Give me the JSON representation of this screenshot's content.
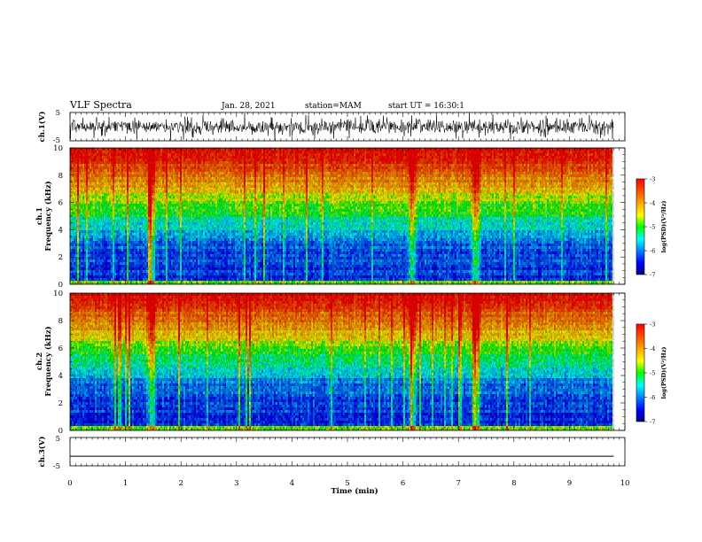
{
  "header": {
    "title": "VLF Spectra",
    "date": "Jan. 28, 2021",
    "station": "station=MAM",
    "start": "start  UT =  16:30:1"
  },
  "colors": {
    "colormap": [
      "#00007f",
      "#0000ff",
      "#00ffff",
      "#00ff00",
      "#ffff00",
      "#ff8000",
      "#ff0000"
    ]
  },
  "chart_data": [
    {
      "type": "line",
      "name": "ch1-waveform",
      "ylabel": "ch.1(V)",
      "ylim": [
        -5,
        5
      ],
      "yticks": [
        "5",
        "-5"
      ],
      "xlim": [
        0,
        10
      ]
    },
    {
      "type": "heatmap",
      "name": "ch1-spectrogram",
      "ylabel": "ch.1\nFrequency (kHz)",
      "ylim": [
        0,
        10
      ],
      "yticks": [
        "0",
        "2",
        "4",
        "6",
        "8",
        "10"
      ],
      "xlim": [
        0,
        10
      ],
      "colorbar": {
        "label": "log(PSD)(V²/Hz)",
        "range": [
          -7,
          -3
        ],
        "ticks": [
          "-3",
          "-4",
          "-5",
          "-6",
          "-7"
        ]
      },
      "notable_broadband_times_min": [
        1.45,
        6.15,
        7.3
      ]
    },
    {
      "type": "heatmap",
      "name": "ch2-spectrogram",
      "ylabel": "ch.2\nFrequency (kHz)",
      "ylim": [
        0,
        10
      ],
      "yticks": [
        "0",
        "2",
        "4",
        "6",
        "8",
        "10"
      ],
      "xlim": [
        0,
        10
      ],
      "colorbar": {
        "label": "log(PSD)(V²/Hz)",
        "range": [
          -7,
          -3
        ],
        "ticks": [
          "-3",
          "-4",
          "-5",
          "-6",
          "-7"
        ]
      },
      "notable_broadband_times_min": [
        1.45,
        6.15,
        7.3
      ]
    },
    {
      "type": "line",
      "name": "ch3-waveform",
      "ylabel": "ch.3(V)",
      "ylim": [
        -5,
        5
      ],
      "yticks": [
        "5",
        "0",
        "-5"
      ],
      "xlim": [
        0,
        10
      ],
      "x": [
        0,
        9.8
      ],
      "y": [
        -1.6,
        -1.6
      ]
    }
  ],
  "xaxis": {
    "label": "Time (min)",
    "ticks": [
      "0",
      "1",
      "2",
      "3",
      "4",
      "5",
      "6",
      "7",
      "8",
      "9",
      "10"
    ],
    "data_end_min": 9.8
  }
}
